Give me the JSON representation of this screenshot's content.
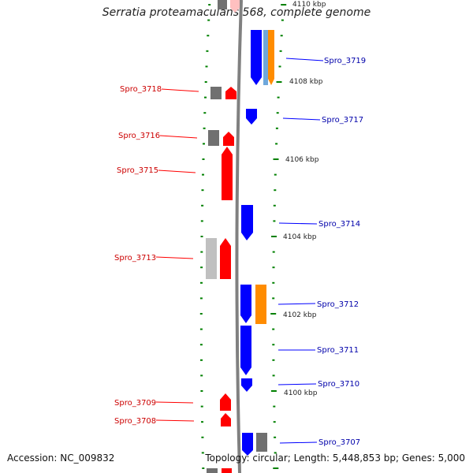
{
  "title": "Serratia proteamaculans 568, complete genome",
  "accession": "Accession: NC_009832",
  "topology": "Topology: circular; Length: 5,448,853 bp; Genes: 5,000",
  "colors": {
    "forward_gene": "#0000ff",
    "reverse_gene": "#ff0000",
    "orange_feature": "#ff8c00",
    "gray_feature": "#707070",
    "light_gray_feature": "#c0c0c0",
    "light_blue_feature": "#6fa8dc",
    "tick": "#008000",
    "backbone": "#808080"
  },
  "scale_labels": [
    "4110 kbp",
    "4108 kbp",
    "4106 kbp",
    "4104 kbp",
    "4102 kbp",
    "4100 kbp"
  ],
  "genes": [
    {
      "label": "Spro_3719",
      "strand": "+"
    },
    {
      "label": "Spro_3718",
      "strand": "-"
    },
    {
      "label": "Spro_3717",
      "strand": "+"
    },
    {
      "label": "Spro_3716",
      "strand": "-"
    },
    {
      "label": "Spro_3715",
      "strand": "-"
    },
    {
      "label": "Spro_3714",
      "strand": "+"
    },
    {
      "label": "Spro_3713",
      "strand": "-"
    },
    {
      "label": "Spro_3712",
      "strand": "+"
    },
    {
      "label": "Spro_3711",
      "strand": "+"
    },
    {
      "label": "Spro_3710",
      "strand": "+"
    },
    {
      "label": "Spro_3709",
      "strand": "-"
    },
    {
      "label": "Spro_3708",
      "strand": "-"
    },
    {
      "label": "Spro_3707",
      "strand": "+"
    }
  ]
}
